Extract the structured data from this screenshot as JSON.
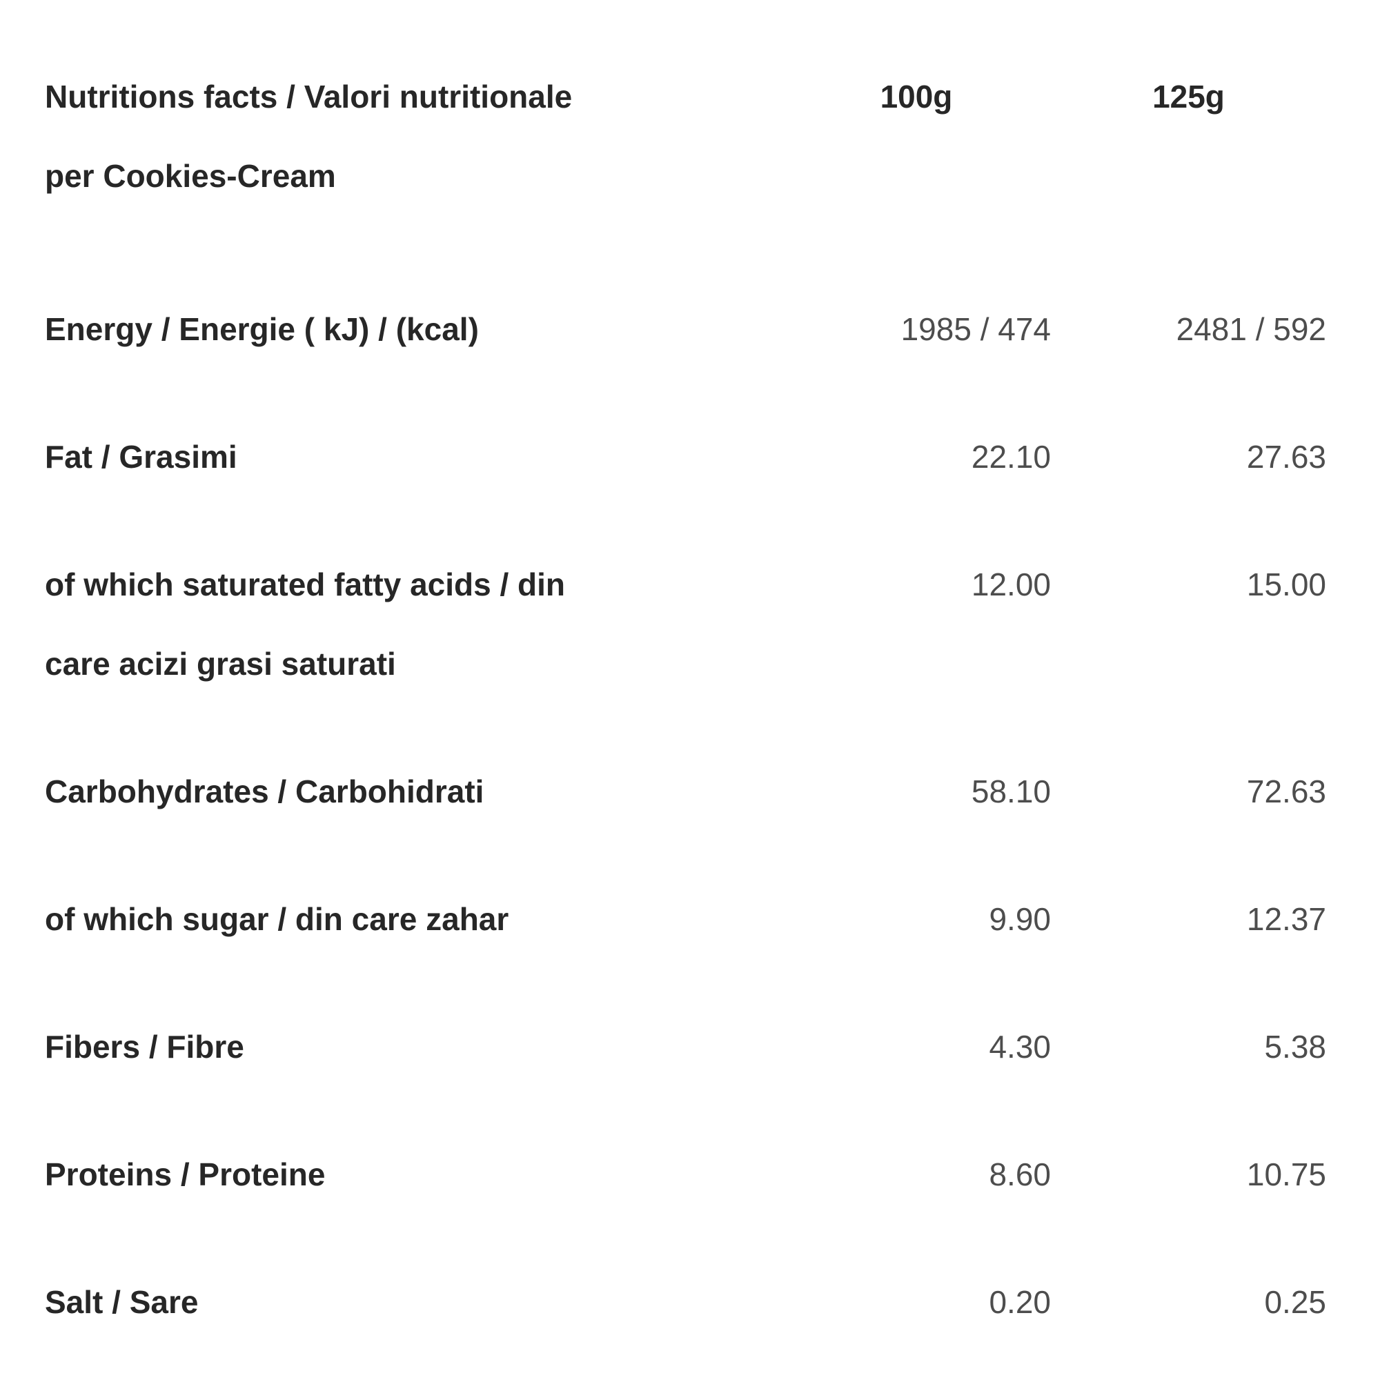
{
  "table": {
    "title": "Nutritions facts / Valori nutritionale\nper Cookies-Cream",
    "columns": [
      "100g",
      "125g"
    ],
    "rows": [
      {
        "label": "Energy / Energie ( kJ) / (kcal)",
        "per100g": "1985 / 474",
        "per125g": "2481 / 592"
      },
      {
        "label": "Fat / Grasimi",
        "per100g": "22.10",
        "per125g": "27.63"
      },
      {
        "label": "of which saturated fatty acids / din\ncare acizi grasi saturati",
        "per100g": "12.00",
        "per125g": "15.00"
      },
      {
        "label": "Carbohydrates / Carbohidrati",
        "per100g": "58.10",
        "per125g": "72.63"
      },
      {
        "label": "of which sugar / din care zahar",
        "per100g": "9.90",
        "per125g": "12.37"
      },
      {
        "label": "Fibers / Fibre",
        "per100g": "4.30",
        "per125g": "5.38"
      },
      {
        "label": "Proteins / Proteine",
        "per100g": "8.60",
        "per125g": "10.75"
      },
      {
        "label": "Salt / Sare",
        "per100g": "0.20",
        "per125g": "0.25"
      }
    ]
  },
  "colors": {
    "background": "#ffffff",
    "label_text": "#272727",
    "value_text": "#4d4d4d"
  }
}
